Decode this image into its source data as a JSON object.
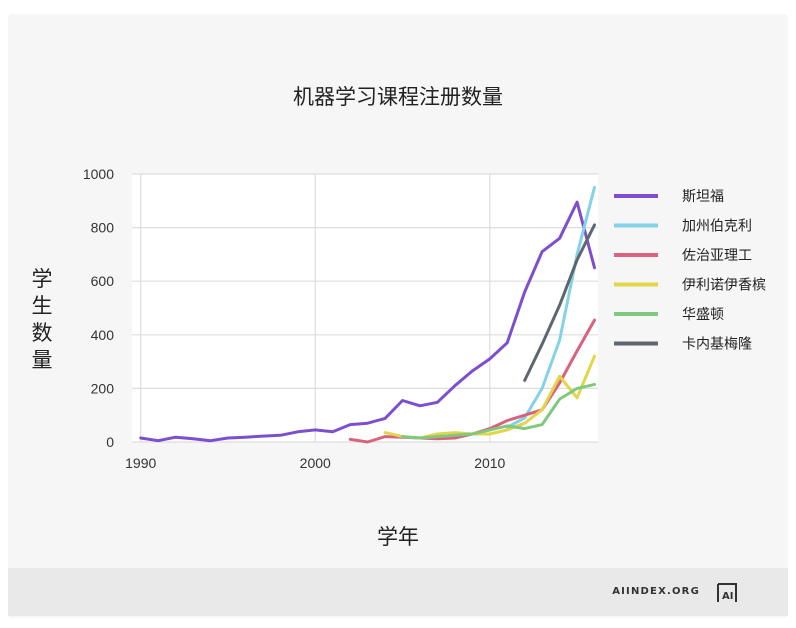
{
  "chart_data": {
    "type": "line",
    "title": "机器学习课程注册数量",
    "xlabel": "学年",
    "ylabel": "学生数量",
    "xlim": [
      1989.5,
      2016.2
    ],
    "ylim": [
      0,
      1000
    ],
    "xticks": [
      "1990",
      "2000",
      "2010"
    ],
    "yticks": [
      "0",
      "200",
      "400",
      "600",
      "800",
      "1000"
    ],
    "grid": true,
    "legend_position": "right",
    "series": [
      {
        "name": "斯坦福",
        "color": "#7d4fcf",
        "x": [
          1990,
          1991,
          1992,
          1993,
          1994,
          1995,
          1996,
          1997,
          1998,
          1999,
          2000,
          2001,
          2002,
          2003,
          2004,
          2005,
          2006,
          2007,
          2008,
          2009,
          2010,
          2011,
          2012,
          2013,
          2014,
          2015,
          2016
        ],
        "y": [
          15,
          5,
          18,
          12,
          5,
          15,
          18,
          22,
          25,
          38,
          45,
          38,
          65,
          70,
          88,
          155,
          135,
          148,
          210,
          265,
          310,
          370,
          560,
          710,
          760,
          895,
          650
        ]
      },
      {
        "name": "加州伯克利",
        "color": "#82d3e6",
        "x": [
          2011,
          2012,
          2013,
          2014,
          2015,
          2016
        ],
        "y": [
          55,
          90,
          200,
          380,
          700,
          950
        ]
      },
      {
        "name": "佐治亚理工",
        "color": "#d9627e",
        "x": [
          2002,
          2003,
          2004,
          2005,
          2006,
          2007,
          2008,
          2009,
          2010,
          2011,
          2012,
          2013,
          2014,
          2015,
          2016
        ],
        "y": [
          10,
          0,
          20,
          18,
          15,
          12,
          15,
          30,
          50,
          80,
          100,
          120,
          220,
          340,
          455
        ]
      },
      {
        "name": "伊利诺伊香槟",
        "color": "#e2d54a",
        "x": [
          2004,
          2005,
          2006,
          2007,
          2008,
          2009,
          2010,
          2011,
          2012,
          2013,
          2014,
          2015,
          2016
        ],
        "y": [
          35,
          20,
          15,
          30,
          35,
          30,
          30,
          45,
          70,
          120,
          245,
          165,
          320
        ]
      },
      {
        "name": "华盛顿",
        "color": "#7fc97f",
        "x": [
          2005,
          2006,
          2007,
          2008,
          2009,
          2010,
          2011,
          2012,
          2013,
          2014,
          2015,
          2016
        ],
        "y": [
          20,
          15,
          20,
          25,
          30,
          45,
          60,
          50,
          65,
          160,
          200,
          215
        ]
      },
      {
        "name": "卡内基梅隆",
        "color": "#5f6670",
        "x": [
          2012,
          2013,
          2014,
          2015,
          2016
        ],
        "y": [
          230,
          365,
          510,
          680,
          810
        ]
      }
    ]
  },
  "footer": {
    "brand": "AIINDEX.ORG",
    "logo_text": "AI"
  }
}
